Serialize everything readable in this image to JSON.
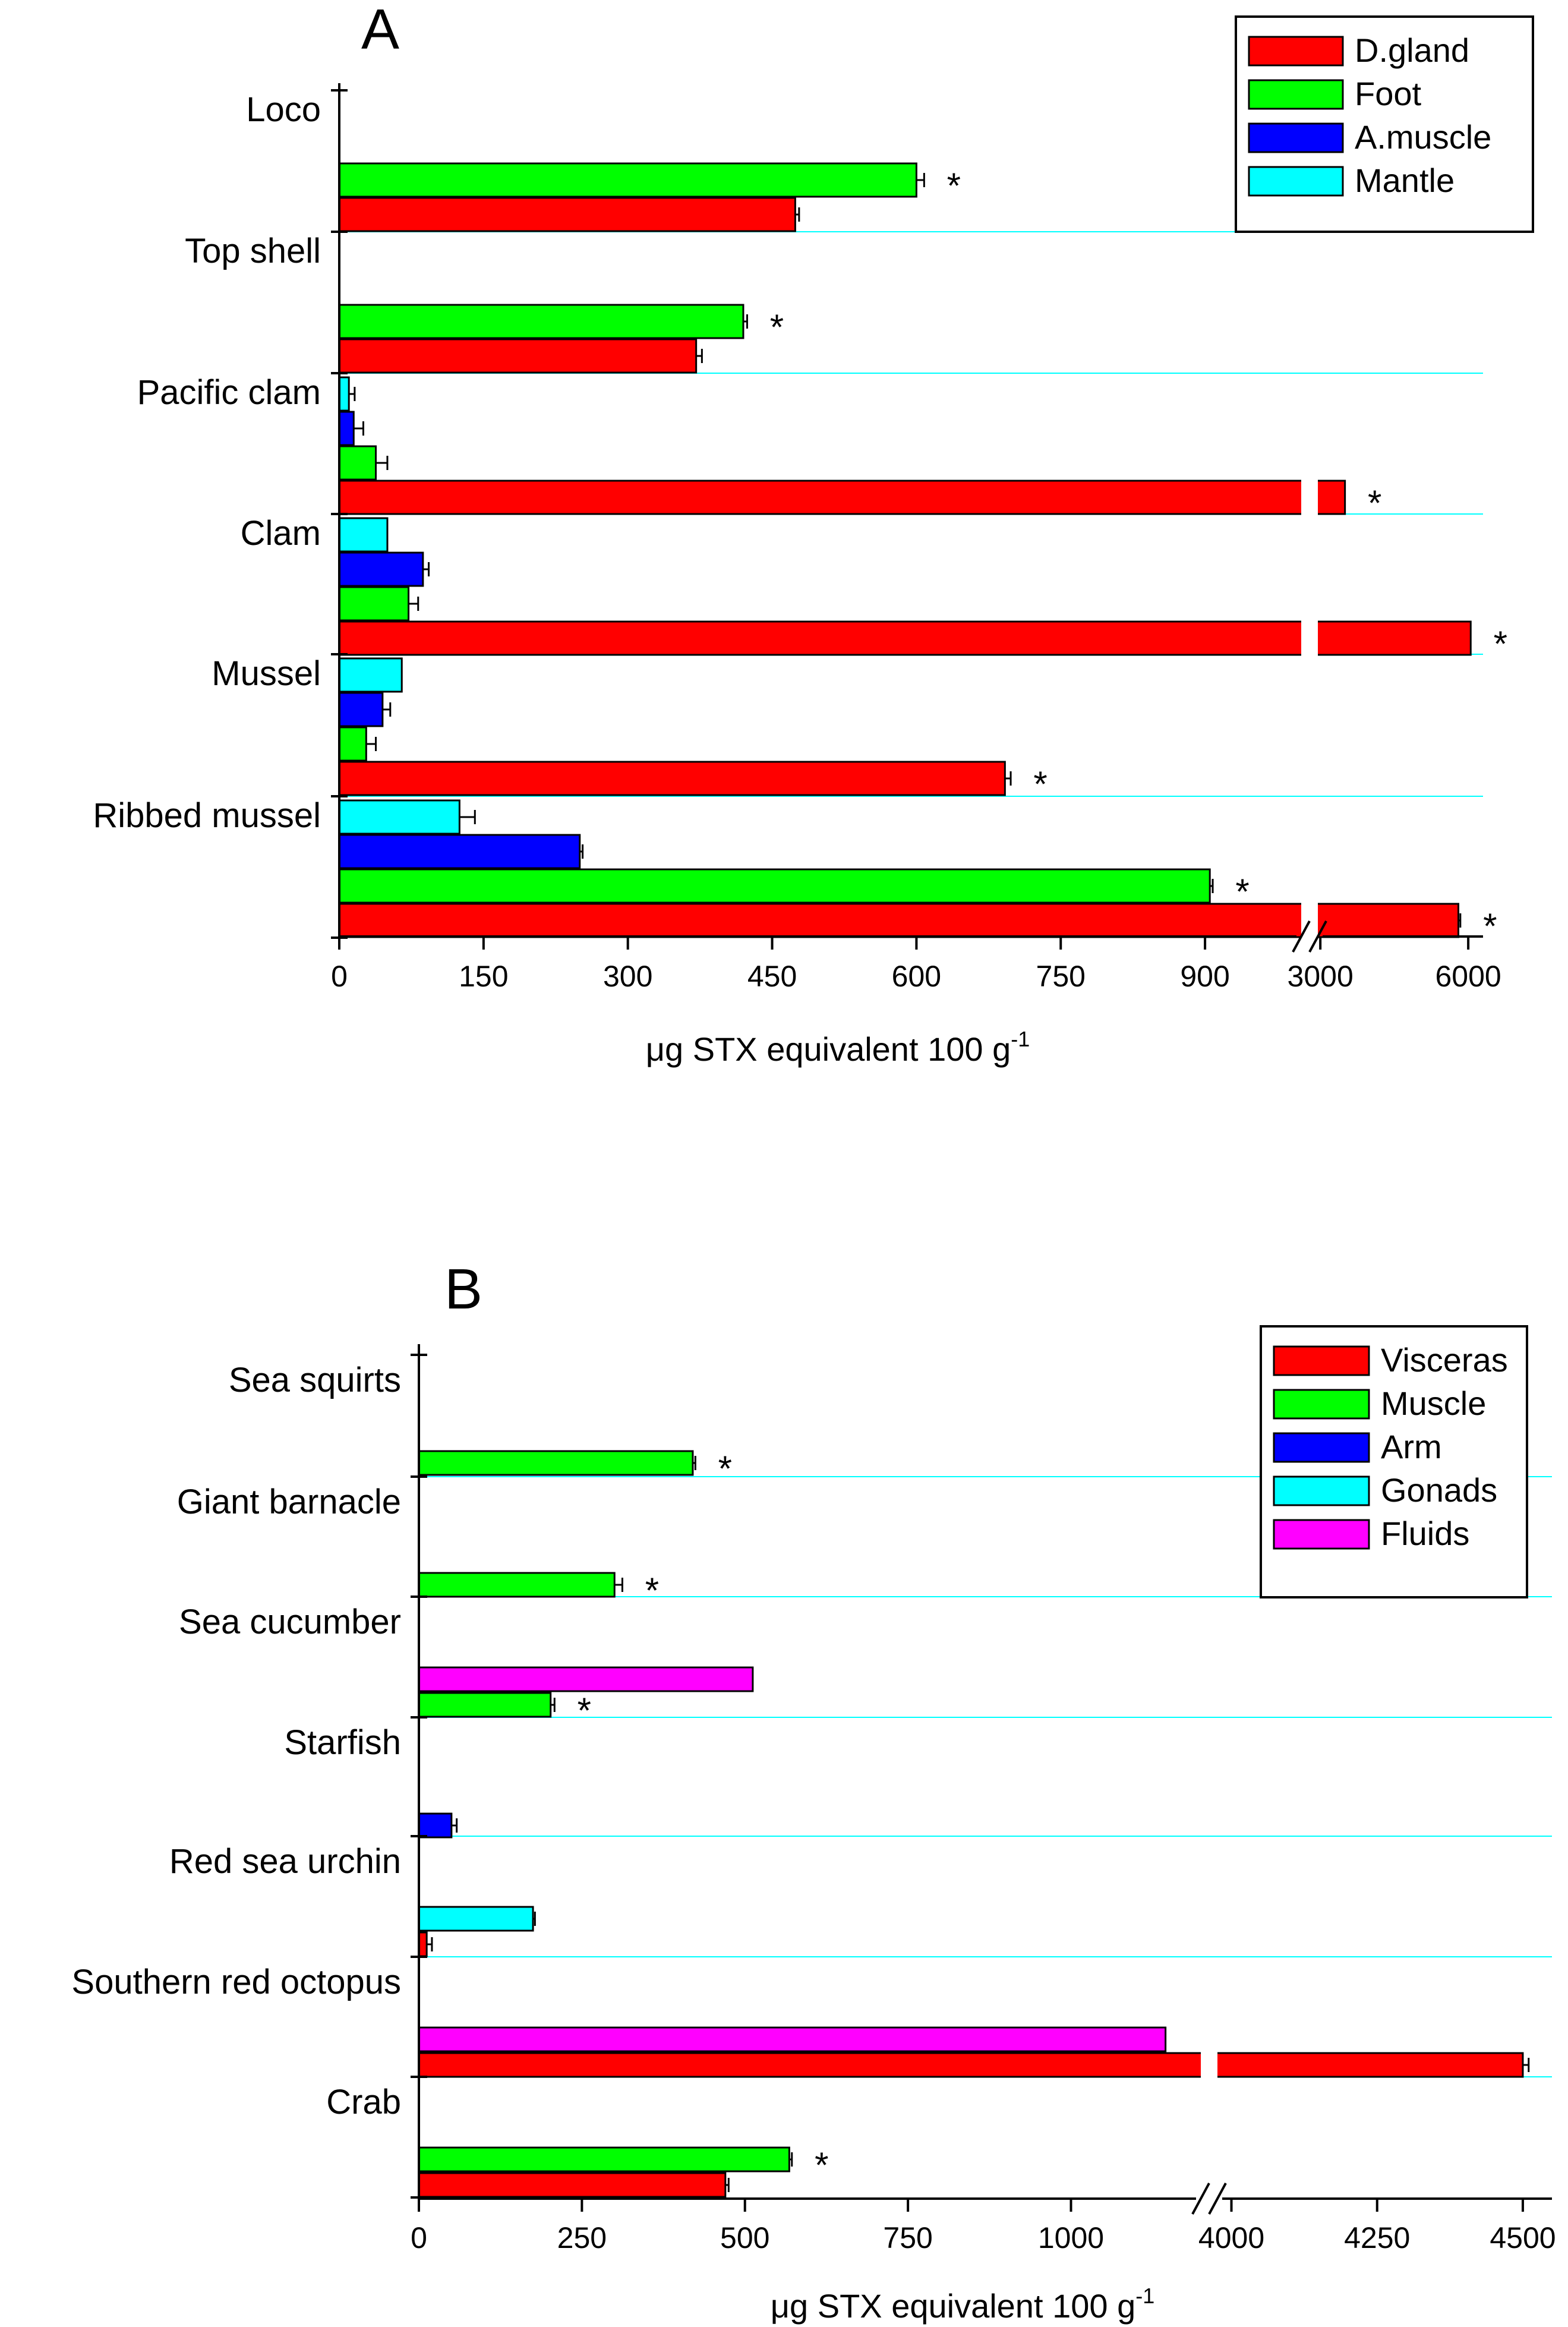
{
  "colors": {
    "red": "#ff0000",
    "green": "#00ff00",
    "blue": "#0000ff",
    "cyan": "#00ffff",
    "magenta": "#ff00ff",
    "separator": "#00ffff"
  },
  "chart_data": [
    {
      "type": "bar",
      "orientation": "horizontal",
      "panel_label": "A",
      "xlabel": "μg STX equivalent 100 g",
      "xlabel_superscript": "-1",
      "xaxis": {
        "broken": true,
        "segments": [
          {
            "range": [
              0,
              1000
            ],
            "ticks": [
              0,
              150,
              300,
              450,
              600,
              750,
              900
            ]
          },
          {
            "range": [
              2950,
              6300
            ],
            "ticks": [
              3000,
              6000
            ]
          }
        ]
      },
      "legend": {
        "position": "top-right",
        "entries": [
          {
            "name": "D.gland",
            "color": "red"
          },
          {
            "name": "Foot",
            "color": "green"
          },
          {
            "name": "A.muscle",
            "color": "blue"
          },
          {
            "name": "Mantle",
            "color": "cyan"
          }
        ]
      },
      "categories": [
        "Loco",
        "Top shell",
        "Pacific clam",
        "Clam",
        "Mussel",
        "Ribbed mussel"
      ],
      "groups": [
        {
          "category": "Loco",
          "bars": [
            {
              "series": "Foot",
              "value": 600,
              "err": 8,
              "star": true
            },
            {
              "series": "D.gland",
              "value": 474,
              "err": 4,
              "star": false
            }
          ]
        },
        {
          "category": "Top shell",
          "bars": [
            {
              "series": "Foot",
              "value": 420,
              "err": 4,
              "star": true
            },
            {
              "series": "D.gland",
              "value": 371,
              "err": 6,
              "star": false
            }
          ]
        },
        {
          "category": "Pacific clam",
          "bars": [
            {
              "series": "Mantle",
              "value": 10,
              "err": 6,
              "star": false
            },
            {
              "series": "A.muscle",
              "value": 15,
              "err": 10,
              "star": false
            },
            {
              "series": "Foot",
              "value": 38,
              "err": 12,
              "star": false
            },
            {
              "series": "D.gland",
              "value": 3500,
              "err": 0,
              "star": true
            }
          ]
        },
        {
          "category": "Clam",
          "bars": [
            {
              "series": "Mantle",
              "value": 50,
              "err": 0,
              "star": false
            },
            {
              "series": "A.muscle",
              "value": 87,
              "err": 6,
              "star": false
            },
            {
              "series": "Foot",
              "value": 72,
              "err": 10,
              "star": false
            },
            {
              "series": "D.gland",
              "value": 6050,
              "err": 0,
              "star": true
            }
          ]
        },
        {
          "category": "Mussel",
          "bars": [
            {
              "series": "Mantle",
              "value": 65,
              "err": 0,
              "star": false
            },
            {
              "series": "A.muscle",
              "value": 45,
              "err": 8,
              "star": false
            },
            {
              "series": "Foot",
              "value": 28,
              "err": 10,
              "star": false
            },
            {
              "series": "D.gland",
              "value": 692,
              "err": 6,
              "star": true
            }
          ]
        },
        {
          "category": "Ribbed mussel",
          "bars": [
            {
              "series": "Mantle",
              "value": 125,
              "err": 16,
              "star": false
            },
            {
              "series": "A.muscle",
              "value": 250,
              "err": 3,
              "star": false
            },
            {
              "series": "Foot",
              "value": 905,
              "err": 3,
              "star": true
            },
            {
              "series": "D.gland",
              "value": 5800,
              "err": 40,
              "star": true
            }
          ]
        }
      ]
    },
    {
      "type": "bar",
      "orientation": "horizontal",
      "panel_label": "B",
      "xlabel": "μg STX equivalent 100 g",
      "xlabel_superscript": "-1",
      "xaxis": {
        "broken": true,
        "segments": [
          {
            "range": [
              0,
              1200
            ],
            "ticks": [
              0,
              250,
              500,
              750,
              1000
            ]
          },
          {
            "range": [
              3975,
              4550
            ],
            "ticks": [
              4000,
              4250,
              4500
            ]
          }
        ]
      },
      "legend": {
        "position": "top-right",
        "entries": [
          {
            "name": "Visceras",
            "color": "red"
          },
          {
            "name": "Muscle",
            "color": "green"
          },
          {
            "name": "Arm",
            "color": "blue"
          },
          {
            "name": "Gonads",
            "color": "cyan"
          },
          {
            "name": "Fluids",
            "color": "magenta"
          }
        ]
      },
      "categories": [
        "Sea squirts",
        "Giant barnacle",
        "Sea cucumber",
        "Starfish",
        "Red sea urchin",
        "Southern red octopus",
        "Crab"
      ],
      "groups": [
        {
          "category": "Sea squirts",
          "bars": [
            {
              "series": "Muscle",
              "value": 420,
              "err": 4,
              "star": true
            }
          ]
        },
        {
          "category": "Giant barnacle",
          "bars": [
            {
              "series": "Muscle",
              "value": 300,
              "err": 12,
              "star": true
            }
          ]
        },
        {
          "category": "Sea cucumber",
          "bars": [
            {
              "series": "Fluids",
              "value": 512,
              "err": 0,
              "star": false
            },
            {
              "series": "Muscle",
              "value": 202,
              "err": 6,
              "star": true
            }
          ]
        },
        {
          "category": "Starfish",
          "bars": [
            {
              "series": "Arm",
              "value": 50,
              "err": 8,
              "star": false
            }
          ]
        },
        {
          "category": "Red sea urchin",
          "bars": [
            {
              "series": "Gonads",
              "value": 175,
              "err": 3,
              "star": false
            },
            {
              "series": "Visceras",
              "value": 12,
              "err": 8,
              "star": false
            }
          ]
        },
        {
          "category": "Southern red octopus",
          "bars": [
            {
              "series": "Fluids",
              "value": 1145,
              "err": 0,
              "star": false
            },
            {
              "series": "Visceras",
              "value": 4500,
              "err": 10,
              "star": false
            }
          ]
        },
        {
          "category": "Crab",
          "bars": [
            {
              "series": "Muscle",
              "value": 568,
              "err": 4,
              "star": true
            },
            {
              "series": "Visceras",
              "value": 470,
              "err": 5,
              "star": false
            }
          ]
        }
      ]
    }
  ]
}
